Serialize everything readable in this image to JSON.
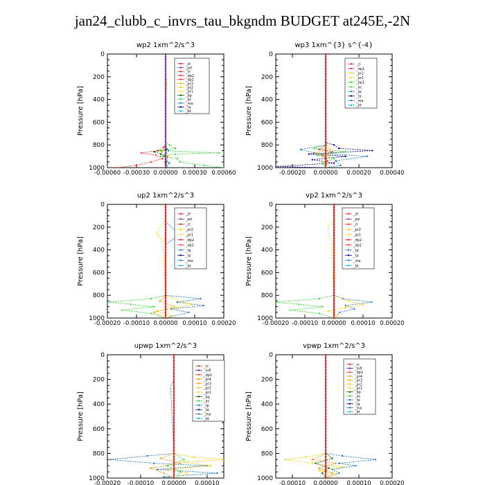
{
  "page": {
    "title": "jan24_clubb_c_invrs_tau_bkgndm  BUDGET at245E,-2N"
  },
  "colors": {
    "_sf": "#e41a1c",
    "_pd": "#7b3294",
    "_cl": "#d62728",
    "_dp2": "#e8112d",
    "_dp1": "#ff2a2a",
    "_pr3": "#f4a300",
    "_pr2": "#ffcc00",
    "_pr1": "#ffd92f",
    "_pr4": "#ff8c00",
    "_bp": "#006400",
    "_ac": "#33dd33",
    "_ma": "#1f77b4",
    "_bt": "#00bcd4",
    "_tp": "#1f77b4",
    "_ta": "#000088",
    "_bp1": "#33cc33",
    "_mfl": "#6a0dad"
  },
  "chart_data": [
    {
      "type": "line",
      "title": "wp2   1xm^2/s^3",
      "ylabel": "Pressure [hPa]",
      "xlim": [
        -0.0006,
        0.0006
      ],
      "ylim": [
        1000,
        0
      ],
      "xticks": [
        "-0.00060",
        "-0.00030",
        "0.00000",
        "0.00030",
        "0.00060"
      ],
      "yticks": [
        "0",
        "200",
        "400",
        "600",
        "800",
        "1000"
      ],
      "legend": [
        "_sf",
        "_pd",
        "_cl",
        "_dp2",
        "_dp1",
        "_pr3",
        "_pr2",
        "_pr1",
        "_bp",
        "_ac",
        "_ma",
        "_ta",
        "_bt"
      ],
      "series": [
        {
          "name": "_ac",
          "y": [
            0,
            780,
            800,
            830,
            850,
            870,
            880,
            900,
            920,
            950,
            980,
            1000
          ],
          "x": [
            0,
            0,
            4e-05,
            0.0001,
            -5e-05,
            0.00055,
            0.0001,
            -5e-05,
            0.00012,
            0.00015,
            0.0004,
            0.0006
          ]
        },
        {
          "name": "_dp1",
          "y": [
            0,
            800,
            820,
            850,
            870,
            890,
            920,
            950,
            980,
            1000
          ],
          "x": [
            0,
            0,
            -2e-05,
            -8e-05,
            -0.00025,
            -0.0001,
            -3e-05,
            -0.00015,
            -0.0003,
            -0.0005
          ]
        },
        {
          "name": "_bp",
          "y": [
            0,
            800,
            840,
            860,
            880,
            900,
            950,
            1000
          ],
          "x": [
            0,
            0,
            1e-05,
            -0.00012,
            -5e-05,
            2e-05,
            1e-05,
            1e-05
          ]
        },
        {
          "name": "_pr3",
          "y": [
            0,
            190,
            220,
            800,
            860,
            900,
            950,
            1000
          ],
          "x": [
            0,
            0,
            1e-05,
            0,
            -4e-05,
            2e-05,
            -1e-05,
            0
          ]
        },
        {
          "name": "_ma",
          "y": [
            0,
            800,
            850,
            900,
            960,
            1000
          ],
          "x": [
            0,
            0,
            3e-05,
            -2e-05,
            4e-05,
            0
          ]
        },
        {
          "name": "_pd",
          "y": [
            0,
            1000
          ],
          "x": [
            0,
            0
          ]
        }
      ]
    },
    {
      "type": "line",
      "title": "wp3   1xm^{3} s^{-4}",
      "ylabel": "Pressure [hPa]",
      "xlim": [
        -0.0003,
        0.0004
      ],
      "ylim": [
        1000,
        0
      ],
      "xticks": [
        "-0.00020",
        "0.00000",
        "0.00020",
        "0.00040"
      ],
      "yticks": [
        "0",
        "200",
        "400",
        "600",
        "800",
        "1000"
      ],
      "legend": [
        "_cl",
        "_dp1",
        "_pr2",
        "_pr1",
        "_bp1",
        "_ac",
        "_tp",
        "_ta",
        "_ma",
        "_bt"
      ],
      "series": [
        {
          "name": "_ta",
          "y": [
            0,
            780,
            800,
            830,
            850,
            880,
            900,
            930,
            960,
            990,
            1000
          ],
          "x": [
            0,
            0,
            5e-05,
            8e-05,
            0.00028,
            -0.0001,
            0.00012,
            -8e-05,
            5e-05,
            -0.0003,
            0
          ]
        },
        {
          "name": "_tp",
          "y": [
            0,
            800,
            840,
            870,
            900,
            940,
            980,
            1000
          ],
          "x": [
            0,
            0,
            -0.00015,
            -7e-05,
            0.00025,
            6e-05,
            9e-05,
            0
          ]
        },
        {
          "name": "_ac",
          "y": [
            0,
            800,
            830,
            860,
            890,
            920,
            960,
            1000
          ],
          "x": [
            0,
            0,
            -7e-05,
            0.00012,
            -5e-05,
            5e-05,
            -2e-05,
            0
          ]
        },
        {
          "name": "_pr2",
          "y": [
            0,
            800,
            840,
            870,
            900,
            950,
            1000
          ],
          "x": [
            0,
            0,
            3e-05,
            -6e-05,
            2e-05,
            -1e-05,
            0
          ]
        },
        {
          "name": "_dp1",
          "y": [
            0,
            800,
            840,
            860,
            890,
            940,
            1000
          ],
          "x": [
            0,
            0,
            -4e-05,
            4e-05,
            -2e-05,
            1e-05,
            0
          ]
        },
        {
          "name": "_cl",
          "y": [
            0,
            1000
          ],
          "x": [
            0,
            0
          ]
        }
      ]
    },
    {
      "type": "line",
      "title": "up2   1xm^2/s^3",
      "ylabel": "Pressure [hPa]",
      "xlim": [
        -0.0002,
        0.0002
      ],
      "ylim": [
        1000,
        0
      ],
      "xticks": [
        "-0.00020",
        "-0.00010",
        "0.00000",
        "0.00010",
        "0.00020"
      ],
      "yticks": [
        "0",
        "200",
        "400",
        "600",
        "800",
        "1000"
      ],
      "legend": [
        "_sf",
        "_pd",
        "_cl",
        "_pr2",
        "_pr1",
        "_dp2",
        "_dp1",
        "_tp",
        "_ta",
        "_ma",
        "_bt"
      ],
      "series": [
        {
          "name": "_ac",
          "y": [
            0,
            800,
            830,
            860,
            880,
            900,
            930,
            960,
            1000
          ],
          "x": [
            0,
            0,
            -5e-05,
            -0.0002,
            -0.00012,
            -4e-05,
            -0.00015,
            -5e-05,
            0
          ]
        },
        {
          "name": "_ma",
          "y": [
            0,
            150,
            200,
            250,
            300,
            350,
            800,
            830,
            860,
            890,
            920,
            950,
            1000
          ],
          "x": [
            0,
            0,
            2e-05,
            4e-05,
            3e-05,
            0,
            0,
            0.00012,
            4e-05,
            0.00013,
            2e-05,
            8e-05,
            0
          ]
        },
        {
          "name": "_pr2",
          "y": [
            0,
            150,
            200,
            260,
            320,
            800,
            860,
            880,
            910,
            940,
            980,
            1000
          ],
          "x": [
            0,
            0,
            -2e-05,
            -3e-05,
            -1e-05,
            0,
            6e-05,
            9e-05,
            4e-05,
            -3e-05,
            2e-05,
            0
          ]
        },
        {
          "name": "_pr3",
          "y": [
            0,
            800,
            850,
            900,
            950,
            1000
          ],
          "x": [
            0,
            0,
            -2e-05,
            3e-05,
            -4e-05,
            0
          ]
        },
        {
          "name": "_sf",
          "y": [
            0,
            1000
          ],
          "x": [
            0,
            0
          ]
        }
      ]
    },
    {
      "type": "line",
      "title": "vp2   1xm^2/s^3",
      "ylabel": "Pressure [hPa]",
      "xlim": [
        -0.0002,
        0.0002
      ],
      "ylim": [
        1000,
        0
      ],
      "xticks": [
        "-0.00020",
        "-0.00010",
        "0.00000",
        "0.00010",
        "0.00020"
      ],
      "yticks": [
        "0",
        "200",
        "400",
        "600",
        "800",
        "1000"
      ],
      "legend": [
        "_sf",
        "_pd",
        "_cl",
        "_pr2",
        "_pr1",
        "_dp2",
        "_dp1",
        "_tp",
        "_ta",
        "_ma",
        "_bt"
      ],
      "series": [
        {
          "name": "_ac",
          "y": [
            0,
            800,
            830,
            860,
            880,
            900,
            930,
            960,
            1000
          ],
          "x": [
            0,
            0,
            -5e-05,
            -0.0002,
            -0.00012,
            -4e-05,
            -0.00015,
            -5e-05,
            0
          ]
        },
        {
          "name": "_ma",
          "y": [
            0,
            800,
            830,
            860,
            890,
            920,
            950,
            1000
          ],
          "x": [
            0,
            0,
            3e-05,
            0.00013,
            4e-05,
            7e-05,
            2e-05,
            0
          ]
        },
        {
          "name": "_pr2",
          "y": [
            0,
            150,
            200,
            260,
            320,
            800,
            850,
            880,
            910,
            940,
            980,
            1000
          ],
          "x": [
            0,
            0,
            -2e-05,
            -2e-05,
            -1e-05,
            0,
            5e-05,
            0.0001,
            4e-05,
            -2e-05,
            1e-05,
            0
          ]
        },
        {
          "name": "_sf",
          "y": [
            0,
            1000
          ],
          "x": [
            0,
            0
          ]
        }
      ]
    },
    {
      "type": "line",
      "title": "upwp   1xm^2/s^3",
      "ylabel": "Pressure [hPa]",
      "xlim": [
        -0.0002,
        0.00015
      ],
      "ylim": [
        1000,
        0
      ],
      "xticks": [
        "-0.00020",
        "-0.00010",
        "0.00000",
        "0.00010"
      ],
      "yticks": [
        "0",
        "200",
        "400",
        "600",
        "800",
        "1000"
      ],
      "legend": [
        "_cl",
        "_mfl",
        "_dp1",
        "_pr4",
        "_pr3",
        "_pr2",
        "_pr1",
        "_bp",
        "_ac",
        "_tp",
        "_ta",
        "_ma",
        "_bt"
      ],
      "series": [
        {
          "name": "_ma",
          "y": [
            0,
            200,
            260,
            800,
            820,
            850,
            880,
            900,
            930,
            960,
            990,
            1000
          ],
          "x": [
            0,
            0,
            -1e-05,
            0,
            -8e-05,
            -0.00019,
            -6e-05,
            0.0001,
            -5e-05,
            0.00013,
            -3e-05,
            0
          ]
        },
        {
          "name": "_pr2",
          "y": [
            0,
            800,
            830,
            850,
            870,
            900,
            930,
            960,
            1000
          ],
          "x": [
            0,
            0,
            6e-05,
            0.00015,
            3e-05,
            0.00011,
            -2e-05,
            4e-05,
            0
          ]
        },
        {
          "name": "_pr4",
          "y": [
            0,
            800,
            840,
            880,
            920,
            960,
            1000
          ],
          "x": [
            0,
            0,
            -4e-05,
            2e-05,
            -7e-05,
            -3e-05,
            0
          ]
        },
        {
          "name": "_ac",
          "y": [
            0,
            800,
            850,
            900,
            950,
            1000
          ],
          "x": [
            0,
            0,
            3e-05,
            -2e-05,
            2e-05,
            0
          ]
        },
        {
          "name": "_cl",
          "y": [
            0,
            1000
          ],
          "x": [
            0,
            0
          ]
        }
      ]
    },
    {
      "type": "line",
      "title": "vpwp   1xm^2/s^3",
      "ylabel": "Pressure [hPa]",
      "xlim": [
        -0.00015,
        0.0002
      ],
      "ylim": [
        1000,
        0
      ],
      "xticks": [
        "-0.00010",
        "0.00000",
        "0.00010",
        "0.00020"
      ],
      "yticks": [
        "0",
        "200",
        "400",
        "600",
        "800",
        "1000"
      ],
      "legend": [
        "_cl",
        "_mfl",
        "_dp1",
        "_pr4",
        "_pr3",
        "_pr2",
        "_pr1",
        "_bp",
        "_ac",
        "_tp",
        "_ta",
        "_ma",
        "_bt"
      ],
      "series": [
        {
          "name": "_ma",
          "y": [
            0,
            800,
            820,
            850,
            880,
            900,
            930,
            960,
            1000
          ],
          "x": [
            0,
            0,
            5e-05,
            0.00015,
            4e-05,
            9e-05,
            2e-05,
            4e-05,
            0
          ]
        },
        {
          "name": "_pr2",
          "y": [
            0,
            800,
            830,
            850,
            880,
            910,
            940,
            970,
            1000
          ],
          "x": [
            0,
            0,
            -6e-05,
            -0.00012,
            -4e-05,
            5e-05,
            -2e-05,
            3e-05,
            0
          ]
        },
        {
          "name": "_pr4",
          "y": [
            0,
            800,
            850,
            880,
            920,
            960,
            1000
          ],
          "x": [
            0,
            0,
            -4e-05,
            3e-05,
            -2e-05,
            2e-05,
            0
          ]
        },
        {
          "name": "_bp",
          "y": [
            0,
            800,
            840,
            880,
            920,
            960,
            1000
          ],
          "x": [
            0,
            0,
            2e-05,
            -3e-05,
            1e-05,
            -1e-05,
            0
          ]
        },
        {
          "name": "_cl",
          "y": [
            0,
            1000
          ],
          "x": [
            0,
            0
          ]
        }
      ]
    }
  ]
}
